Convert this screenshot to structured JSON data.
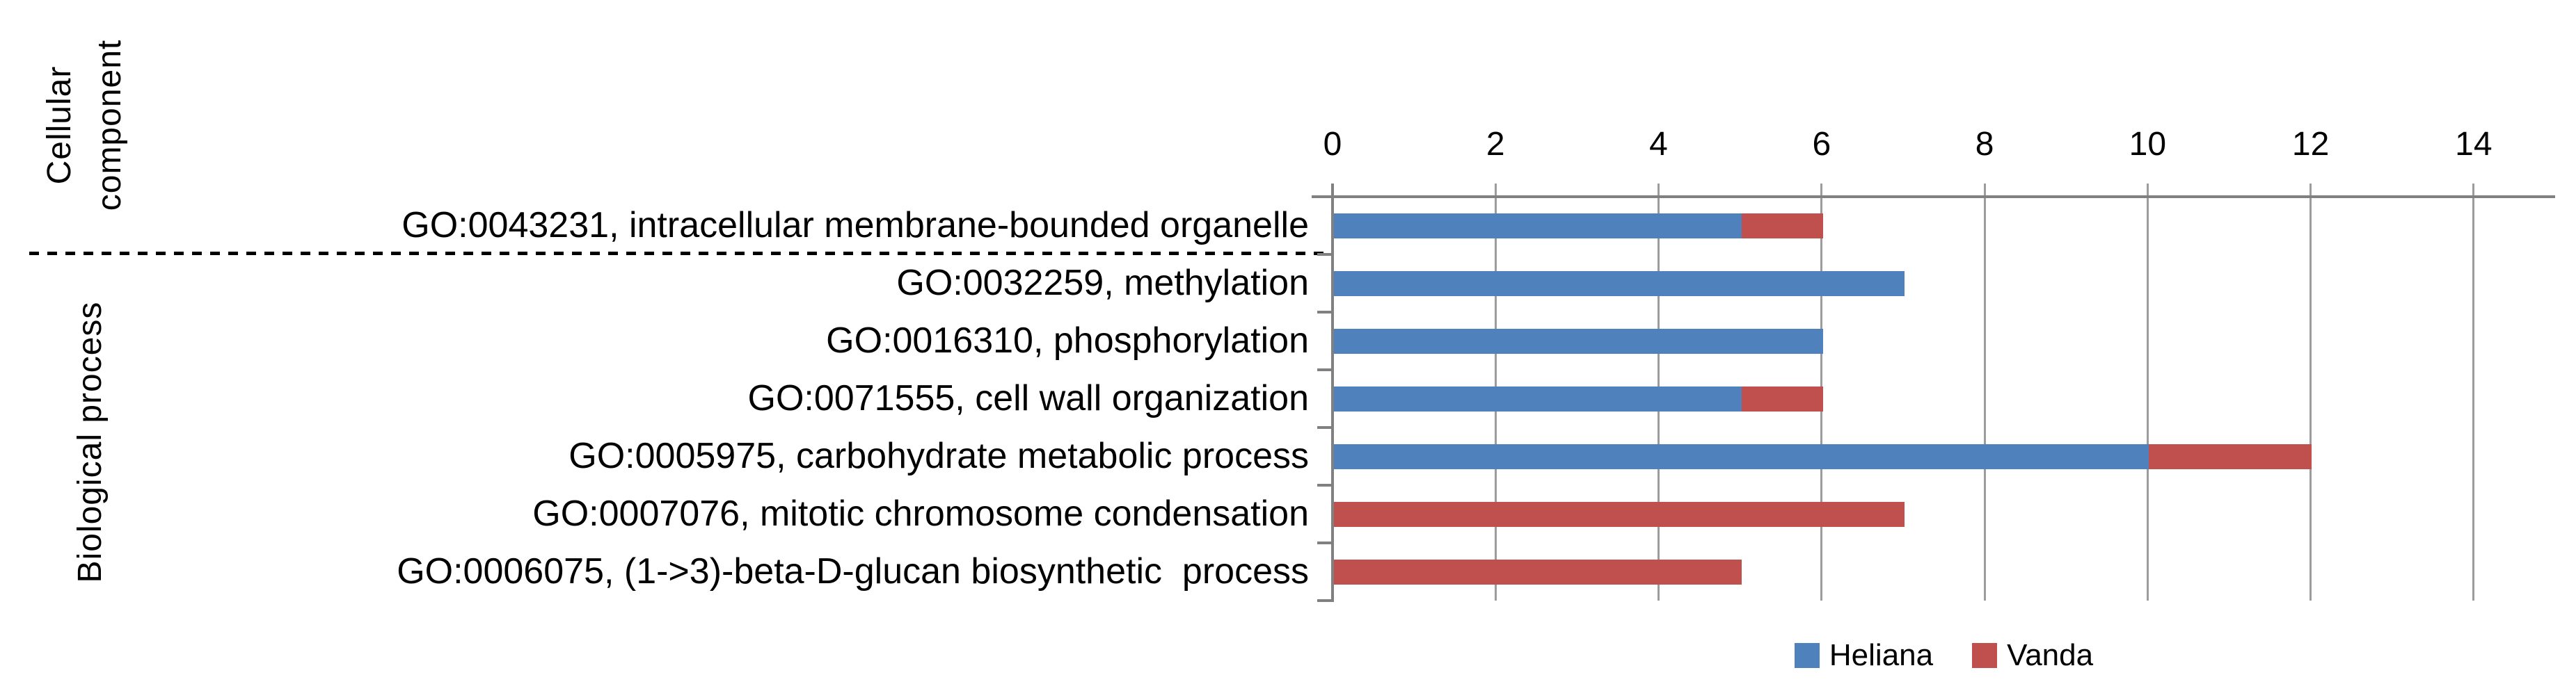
{
  "chart_data": {
    "type": "bar",
    "orientation": "horizontal",
    "stacked": true,
    "title": "",
    "categories": [
      "GO:0043231, intracellular membrane-bounded organelle",
      "GO:0032259, methylation",
      "GO:0016310, phosphorylation",
      "GO:0071555, cell wall organization",
      "GO:0005975, carbohydrate metabolic process",
      "GO:0007076, mitotic chromosome condensation",
      "GO:0006075, (1->3)-beta-D-glucan biosynthetic  process"
    ],
    "category_groups": [
      {
        "label": "Cellular component",
        "lines": [
          "Cellular",
          "component"
        ],
        "start": 0,
        "end": 0
      },
      {
        "label": "Biological process",
        "lines": [
          "Biological process"
        ],
        "start": 1,
        "end": 6
      }
    ],
    "series": [
      {
        "name": "Heliana",
        "color": "#4F81BD",
        "values": [
          5,
          7,
          6,
          5,
          10,
          0,
          0
        ]
      },
      {
        "name": "Vanda",
        "color": "#C0504D",
        "values": [
          1,
          0,
          0,
          1,
          2,
          7,
          5
        ]
      }
    ],
    "x_axis": {
      "position": "top",
      "min": 0,
      "max": 15,
      "tick_interval": 2,
      "ticks": [
        0,
        2,
        4,
        6,
        8,
        10,
        12,
        14
      ],
      "tick_labels": [
        "0",
        "2",
        "4",
        "6",
        "8",
        "10",
        "12",
        "14"
      ]
    },
    "legend": {
      "position": "bottom",
      "entries": [
        "Heliana",
        "Vanda"
      ]
    },
    "grid": true,
    "colors": {
      "heliana": "#4F81BD",
      "vanda": "#C0504D",
      "axis": "#808080",
      "gridline": "#9C9C9C",
      "separator": "#000000",
      "text": "#000000",
      "background": "#FFFFFF"
    }
  }
}
